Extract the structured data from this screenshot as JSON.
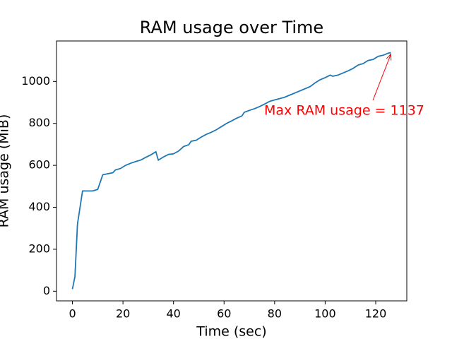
{
  "chart_data": {
    "type": "line",
    "title": "RAM usage over Time",
    "x_label": "Time (sec)",
    "y_label": "RAM usage (MiB)",
    "x": [
      0,
      1,
      2,
      4,
      6,
      8,
      10,
      12,
      14,
      16,
      17,
      19,
      21,
      23,
      25,
      27,
      29,
      31,
      33,
      34,
      36,
      38,
      40,
      42,
      44,
      46,
      47,
      49,
      51,
      53,
      55,
      57,
      59,
      61,
      63,
      65,
      67,
      68,
      70,
      72,
      74,
      76,
      78,
      80,
      82,
      84,
      86,
      88,
      90,
      92,
      94,
      96,
      98,
      100,
      102,
      103,
      105,
      107,
      109,
      111,
      113,
      115,
      117,
      119,
      121,
      123,
      125,
      126
    ],
    "series": [
      {
        "name": "RAM usage",
        "color": "#1f77b4",
        "values": [
          10,
          70,
          320,
          478,
          478,
          478,
          485,
          555,
          560,
          565,
          578,
          585,
          600,
          610,
          618,
          625,
          638,
          650,
          665,
          625,
          640,
          652,
          655,
          668,
          690,
          698,
          715,
          720,
          735,
          748,
          758,
          770,
          785,
          800,
          812,
          825,
          835,
          853,
          862,
          870,
          880,
          892,
          905,
          912,
          918,
          925,
          935,
          945,
          955,
          965,
          975,
          993,
          1008,
          1018,
          1030,
          1025,
          1030,
          1040,
          1050,
          1062,
          1078,
          1085,
          1100,
          1105,
          1120,
          1125,
          1135,
          1137
        ]
      }
    ],
    "xlim": [
      -6.3,
      132.3
    ],
    "ylim": [
      -46,
      1193
    ],
    "xticks": [
      0,
      20,
      40,
      60,
      80,
      100,
      120
    ],
    "yticks": [
      0,
      200,
      400,
      600,
      800,
      1000
    ],
    "annotation": {
      "text": "Max RAM usage = 1137",
      "color": "red",
      "xy": [
        126,
        1137
      ]
    }
  }
}
